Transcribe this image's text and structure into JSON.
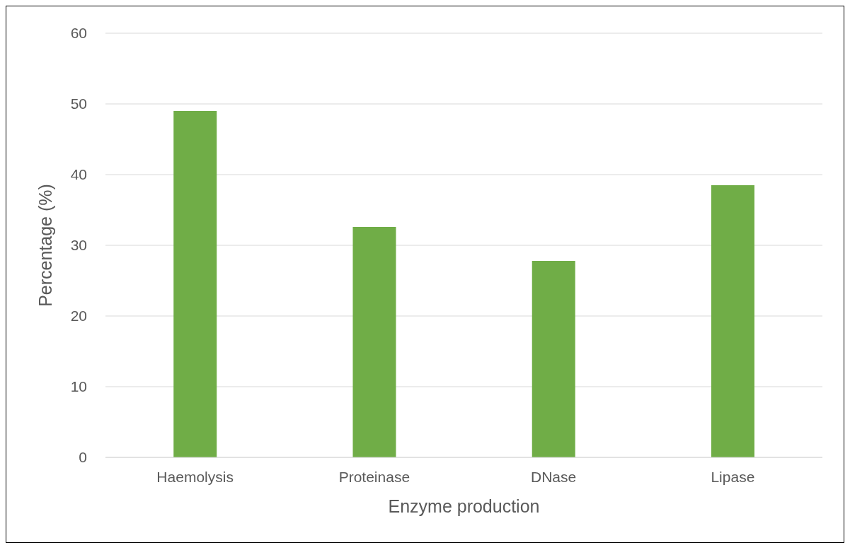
{
  "chart_data": {
    "type": "bar",
    "xlabel": "Enzyme production",
    "ylabel": "Percentage (%)",
    "categories": [
      "Haemolysis",
      "Proteinase",
      "DNase",
      "Lipase"
    ],
    "values": [
      49,
      32.6,
      27.8,
      38.5
    ],
    "color": "#70ad47",
    "ylim": [
      0,
      60
    ],
    "yticks": [
      0,
      10,
      20,
      30,
      40,
      50,
      60
    ],
    "grid": "y"
  }
}
